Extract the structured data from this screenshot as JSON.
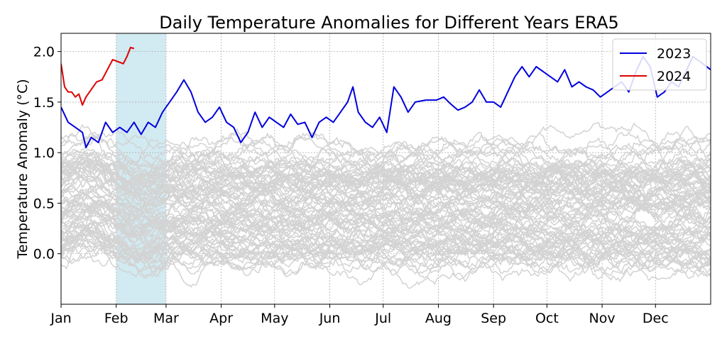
{
  "chart_data": {
    "type": "line",
    "title": "Daily Temperature Anomalies for Different Years ERA5",
    "xlabel": "",
    "ylabel": "Temperature Anomaly (°C)",
    "x_ticks": [
      "Jan",
      "Feb",
      "Mar",
      "Apr",
      "May",
      "Jun",
      "Jul",
      "Aug",
      "Sep",
      "Oct",
      "Nov",
      "Dec"
    ],
    "x_tick_days": [
      1,
      32,
      60,
      91,
      121,
      152,
      182,
      213,
      244,
      274,
      305,
      335
    ],
    "xlim": [
      1,
      366
    ],
    "y_ticks": [
      "0.0",
      "0.5",
      "1.0",
      "1.5",
      "2.0"
    ],
    "ylim": [
      -0.5,
      2.18
    ],
    "grid": true,
    "legend_position": "top-right",
    "highlight_span": {
      "from_day": 32,
      "to_day": 60,
      "color": "#add8e6"
    },
    "background_series_color": "#d3d3d3",
    "background_series_count": 84,
    "series": [
      {
        "name": "2023",
        "color": "#0000dd",
        "points": [
          [
            1,
            1.45
          ],
          [
            5,
            1.3
          ],
          [
            9,
            1.25
          ],
          [
            13,
            1.2
          ],
          [
            15,
            1.05
          ],
          [
            18,
            1.15
          ],
          [
            22,
            1.1
          ],
          [
            26,
            1.3
          ],
          [
            30,
            1.2
          ],
          [
            34,
            1.25
          ],
          [
            38,
            1.2
          ],
          [
            42,
            1.3
          ],
          [
            46,
            1.18
          ],
          [
            50,
            1.3
          ],
          [
            54,
            1.25
          ],
          [
            58,
            1.4
          ],
          [
            62,
            1.5
          ],
          [
            66,
            1.6
          ],
          [
            70,
            1.72
          ],
          [
            74,
            1.6
          ],
          [
            78,
            1.4
          ],
          [
            82,
            1.3
          ],
          [
            86,
            1.35
          ],
          [
            90,
            1.45
          ],
          [
            94,
            1.3
          ],
          [
            98,
            1.25
          ],
          [
            102,
            1.1
          ],
          [
            106,
            1.2
          ],
          [
            110,
            1.4
          ],
          [
            114,
            1.25
          ],
          [
            118,
            1.35
          ],
          [
            122,
            1.3
          ],
          [
            126,
            1.25
          ],
          [
            130,
            1.38
          ],
          [
            134,
            1.28
          ],
          [
            138,
            1.3
          ],
          [
            142,
            1.15
          ],
          [
            146,
            1.3
          ],
          [
            150,
            1.35
          ],
          [
            154,
            1.3
          ],
          [
            158,
            1.4
          ],
          [
            162,
            1.5
          ],
          [
            165,
            1.65
          ],
          [
            168,
            1.4
          ],
          [
            172,
            1.3
          ],
          [
            176,
            1.25
          ],
          [
            180,
            1.35
          ],
          [
            184,
            1.2
          ],
          [
            188,
            1.65
          ],
          [
            192,
            1.55
          ],
          [
            196,
            1.4
          ],
          [
            200,
            1.5
          ],
          [
            206,
            1.52
          ],
          [
            212,
            1.52
          ],
          [
            216,
            1.55
          ],
          [
            220,
            1.48
          ],
          [
            224,
            1.42
          ],
          [
            228,
            1.45
          ],
          [
            232,
            1.5
          ],
          [
            236,
            1.62
          ],
          [
            240,
            1.5
          ],
          [
            244,
            1.5
          ],
          [
            248,
            1.45
          ],
          [
            252,
            1.6
          ],
          [
            256,
            1.75
          ],
          [
            260,
            1.85
          ],
          [
            264,
            1.75
          ],
          [
            268,
            1.85
          ],
          [
            272,
            1.8
          ],
          [
            276,
            1.75
          ],
          [
            280,
            1.7
          ],
          [
            284,
            1.82
          ],
          [
            288,
            1.65
          ],
          [
            292,
            1.7
          ],
          [
            296,
            1.65
          ],
          [
            300,
            1.62
          ],
          [
            304,
            1.55
          ],
          [
            308,
            1.6
          ],
          [
            312,
            1.65
          ],
          [
            316,
            1.7
          ],
          [
            320,
            1.6
          ],
          [
            324,
            1.8
          ],
          [
            328,
            1.95
          ],
          [
            332,
            1.85
          ],
          [
            336,
            1.55
          ],
          [
            340,
            1.6
          ],
          [
            344,
            1.7
          ],
          [
            348,
            1.65
          ],
          [
            352,
            1.8
          ],
          [
            356,
            1.95
          ],
          [
            360,
            1.9
          ],
          [
            366,
            1.82
          ]
        ]
      },
      {
        "name": "2024",
        "color": "#dd0000",
        "points": [
          [
            1,
            1.88
          ],
          [
            3,
            1.65
          ],
          [
            5,
            1.6
          ],
          [
            7,
            1.6
          ],
          [
            9,
            1.55
          ],
          [
            11,
            1.58
          ],
          [
            13,
            1.47
          ],
          [
            15,
            1.55
          ],
          [
            17,
            1.6
          ],
          [
            19,
            1.65
          ],
          [
            21,
            1.7
          ],
          [
            24,
            1.72
          ],
          [
            27,
            1.82
          ],
          [
            30,
            1.92
          ],
          [
            33,
            1.9
          ],
          [
            36,
            1.88
          ],
          [
            38,
            1.95
          ],
          [
            40,
            2.04
          ],
          [
            42,
            2.03
          ]
        ]
      }
    ]
  }
}
